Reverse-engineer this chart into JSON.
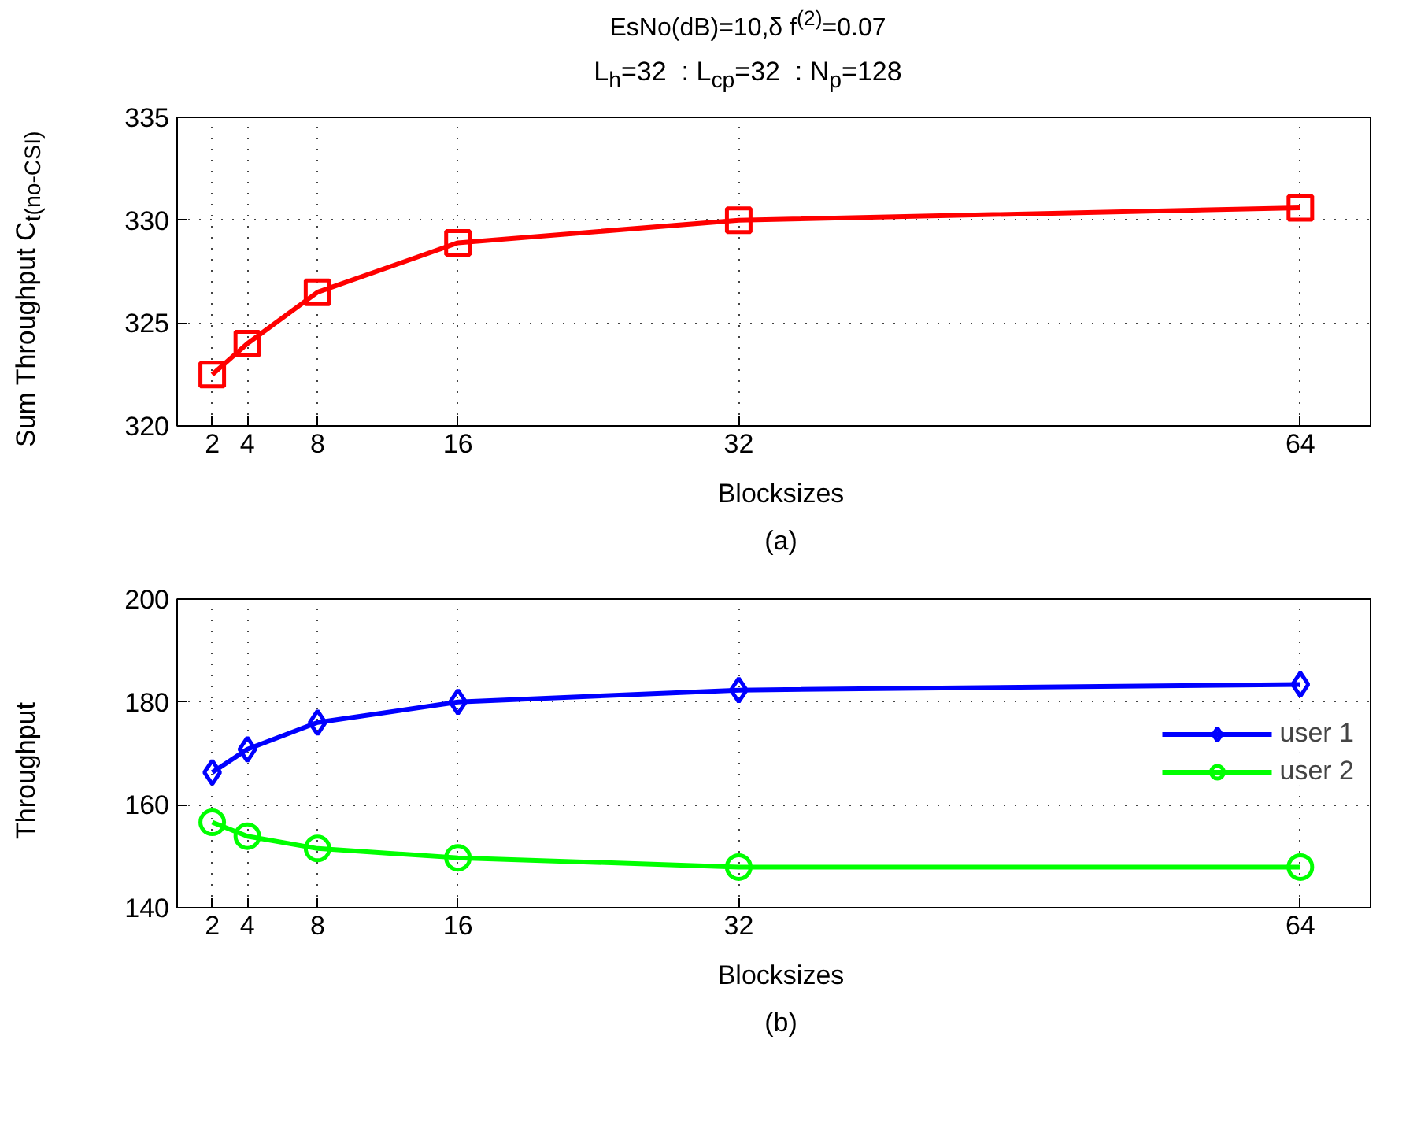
{
  "chart_data": [
    {
      "type": "line",
      "title": "EsNo(dB)=10,δ f$^{(2)}$=0.07",
      "subtitle": "L$_{h}$=32  : L$_{cp}$=32  : N$_{p}$=128",
      "xlabel": "Blocksizes",
      "ylabel": "Sum Throughput C$_{t(no-CSI)}$",
      "annotations": [
        "(a)"
      ],
      "x": [
        2,
        4,
        8,
        16,
        32,
        64
      ],
      "series": [
        {
          "color": "#ff0000",
          "marker": "square",
          "values": [
            322.5,
            324.0,
            326.5,
            328.9,
            330.0,
            330.6
          ]
        }
      ],
      "xlim": [
        0,
        68
      ],
      "xticks": [
        2,
        4,
        8,
        16,
        32,
        64
      ],
      "ylim": [
        320,
        335
      ],
      "yticks": [
        320,
        325,
        330,
        335
      ],
      "grid": true,
      "line_style": "solid",
      "legend": false
    },
    {
      "type": "line",
      "xlabel": "Blocksizes",
      "ylabel": "Throughput",
      "annotations": [
        "(b)"
      ],
      "x": [
        2,
        4,
        8,
        16,
        32,
        64
      ],
      "series": [
        {
          "name": "user 1",
          "color": "#0000ff",
          "marker": "diamond",
          "values": [
            166.3,
            170.8,
            176.0,
            180.0,
            182.3,
            183.4
          ]
        },
        {
          "name": "user 2",
          "color": "#00ff00",
          "marker": "circle",
          "values": [
            156.6,
            153.9,
            151.5,
            149.7,
            147.9,
            147.9
          ]
        }
      ],
      "xlim": [
        0,
        68
      ],
      "xticks": [
        2,
        4,
        8,
        16,
        32,
        64
      ],
      "ylim": [
        140,
        200
      ],
      "yticks": [
        140,
        160,
        180,
        200
      ],
      "grid": true,
      "line_style": "solid",
      "legend": "right"
    }
  ]
}
